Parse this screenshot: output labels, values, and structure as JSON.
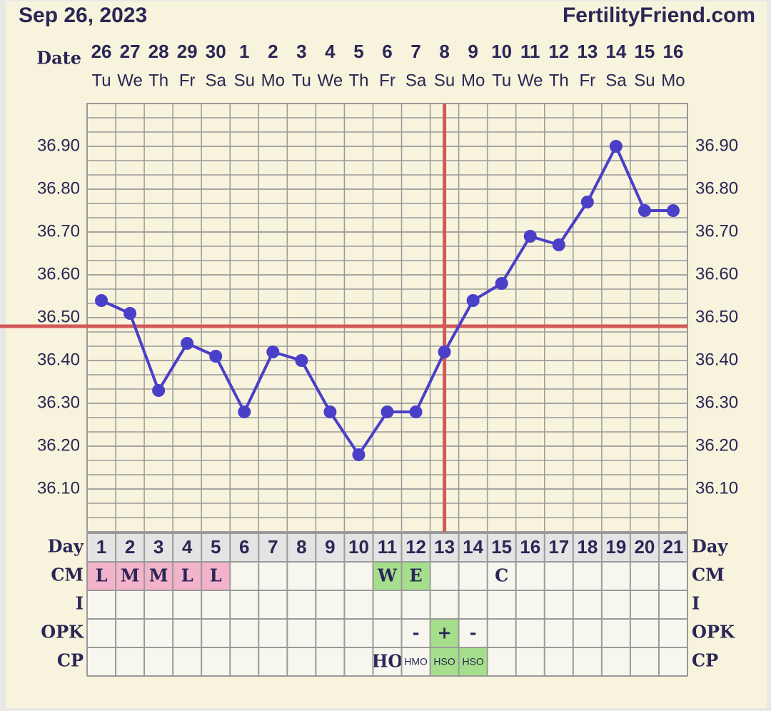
{
  "chart_data": {
    "type": "line",
    "title": "Sep 26, 2023",
    "source": "FertilityFriend.com",
    "x_label": "Date",
    "categories": [
      "26",
      "27",
      "28",
      "29",
      "30",
      "1",
      "2",
      "3",
      "4",
      "5",
      "6",
      "7",
      "8",
      "9",
      "10",
      "11",
      "12",
      "13",
      "14",
      "15",
      "16"
    ],
    "weekdays": [
      "Tu",
      "We",
      "Th",
      "Fr",
      "Sa",
      "Su",
      "Mo",
      "Tu",
      "We",
      "Th",
      "Fr",
      "Sa",
      "Su",
      "Mo",
      "Tu",
      "We",
      "Th",
      "Fr",
      "Sa",
      "Su",
      "Mo"
    ],
    "values": [
      36.54,
      36.51,
      36.33,
      36.44,
      36.41,
      36.28,
      36.42,
      36.4,
      36.28,
      36.18,
      36.28,
      36.28,
      36.42,
      36.54,
      36.58,
      36.69,
      36.67,
      36.77,
      36.9,
      36.75,
      36.75
    ],
    "color": "#4a3fc8",
    "ylim": [
      36.0,
      37.0
    ],
    "yticks": [
      {
        "value": 36.1,
        "label": "36.10"
      },
      {
        "value": 36.2,
        "label": "36.20"
      },
      {
        "value": 36.3,
        "label": "36.30"
      },
      {
        "value": 36.4,
        "label": "36.40"
      },
      {
        "value": 36.5,
        "label": "36.50"
      },
      {
        "value": 36.6,
        "label": "36.60"
      },
      {
        "value": 36.7,
        "label": "36.70"
      },
      {
        "value": 36.8,
        "label": "36.80"
      },
      {
        "value": 36.9,
        "label": "36.90"
      }
    ],
    "grid": true,
    "coverline": 36.48,
    "ovulation_day": 13,
    "marker_color": "#d45858",
    "day_label": "Day",
    "days": [
      1,
      2,
      3,
      4,
      5,
      6,
      7,
      8,
      9,
      10,
      11,
      12,
      13,
      14,
      15,
      16,
      17,
      18,
      19,
      20,
      21
    ],
    "rows": [
      {
        "label": "CM",
        "cells": [
          "L",
          "M",
          "M",
          "L",
          "L",
          null,
          null,
          null,
          null,
          null,
          "W",
          "E",
          null,
          null,
          "C",
          null,
          null,
          null,
          null,
          null,
          null
        ],
        "fills": [
          "#f2b3cb",
          "#f2b3cb",
          "#f2b3cb",
          "#f2b3cb",
          "#f2b3cb",
          null,
          null,
          null,
          null,
          null,
          "#a6df8c",
          "#a6df8c",
          null,
          null,
          null,
          null,
          null,
          null,
          null,
          null,
          null
        ]
      },
      {
        "label": "I",
        "cells": [
          null,
          null,
          null,
          null,
          null,
          null,
          null,
          null,
          null,
          null,
          null,
          null,
          null,
          null,
          null,
          null,
          null,
          null,
          null,
          null,
          null
        ],
        "fills": [
          null,
          null,
          null,
          null,
          null,
          null,
          null,
          null,
          null,
          null,
          null,
          null,
          null,
          null,
          null,
          null,
          null,
          null,
          null,
          null,
          null
        ]
      },
      {
        "label": "OPK",
        "cells": [
          null,
          null,
          null,
          null,
          null,
          null,
          null,
          null,
          null,
          null,
          null,
          "-",
          "+",
          "-",
          null,
          null,
          null,
          null,
          null,
          null,
          null
        ],
        "fills": [
          null,
          null,
          null,
          null,
          null,
          null,
          null,
          null,
          null,
          null,
          null,
          null,
          "#a6df8c",
          null,
          null,
          null,
          null,
          null,
          null,
          null,
          null
        ]
      },
      {
        "label": "CP",
        "cells": [
          null,
          null,
          null,
          null,
          null,
          null,
          null,
          null,
          null,
          null,
          "HO",
          "HMO",
          "HSO",
          "HSO",
          null,
          null,
          null,
          null,
          null,
          null,
          null
        ],
        "fills": [
          null,
          null,
          null,
          null,
          null,
          null,
          null,
          null,
          null,
          null,
          null,
          null,
          "#a6df8c",
          "#a6df8c",
          null,
          null,
          null,
          null,
          null,
          null,
          null
        ]
      }
    ]
  }
}
